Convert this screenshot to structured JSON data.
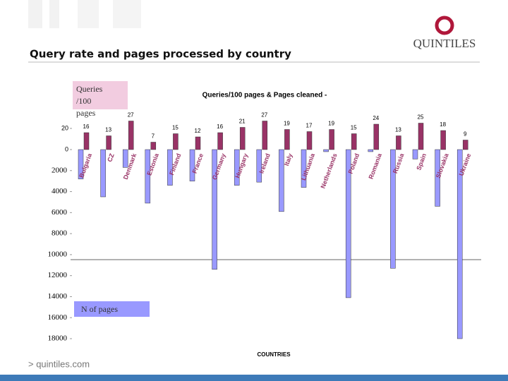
{
  "header": {
    "title": "Query rate and pages processed by country",
    "logo": "QUINTILES",
    "footer": "> quintiles.com"
  },
  "chart_data": {
    "type": "bar",
    "title": "Queries/100 pages & Pages cleaned -",
    "x_label": "COUNTRIES",
    "categories": [
      "Bulgaria",
      "CZ",
      "Denmark",
      "Estonia",
      "Finland",
      "France",
      "Germany",
      "Hungary",
      "Ireland",
      "Italy",
      "Lithuania",
      "Netherlands",
      "Poland",
      "Romania",
      "Russia",
      "Spain",
      "Slovakia",
      "Ukraine"
    ],
    "series": [
      {
        "name": "Queries /100 pages",
        "color": "#993366",
        "values": [
          16,
          13,
          27,
          7,
          15,
          12,
          16,
          21,
          27,
          19,
          17,
          19,
          15,
          24,
          13,
          25,
          18,
          9
        ]
      },
      {
        "name": "N of pages",
        "color": "#9999ff",
        "axis": "y2",
        "values": [
          2800,
          4500,
          1700,
          5100,
          3400,
          3000,
          11400,
          3400,
          3100,
          5900,
          3600,
          200,
          14100,
          200,
          11300,
          900,
          5400,
          18000
        ]
      }
    ],
    "ylim": [
      0,
      30
    ],
    "yticks": [
      0,
      20
    ],
    "y2lim": [
      0,
      18000
    ],
    "y2ticks": [
      2000,
      4000,
      6000,
      8000,
      10000,
      12000,
      14000,
      16000,
      18000
    ]
  }
}
